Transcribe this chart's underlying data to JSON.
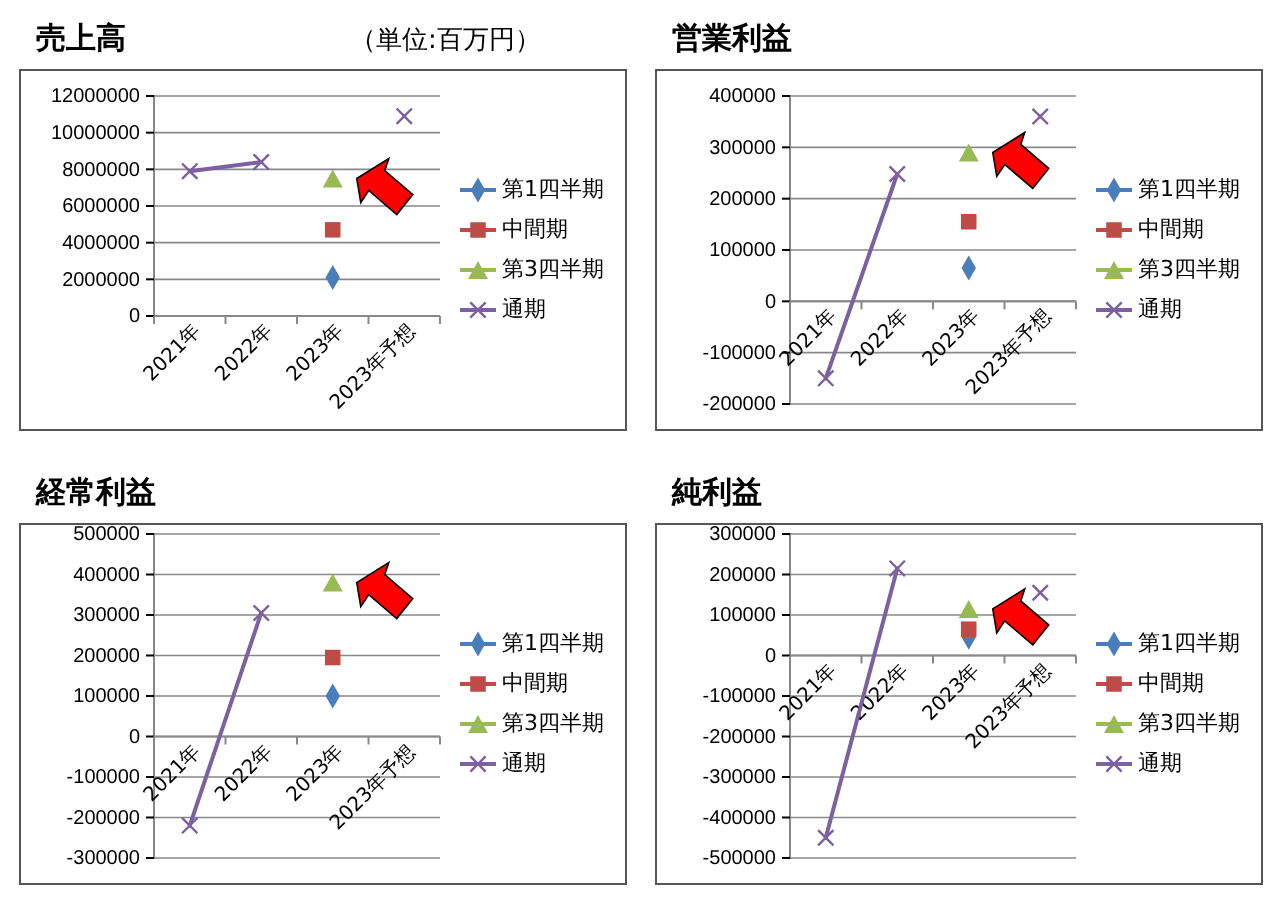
{
  "chart_data": [
    {
      "type": "line",
      "title": "売上高",
      "subtitle": "（単位:百万円）",
      "categories": [
        "2021年",
        "2022年",
        "2023年",
        "2023年予想"
      ],
      "series": [
        {
          "name": "第1四半期",
          "type": "scatter",
          "color": "#4a7ebb",
          "marker": "diamond",
          "values": [
            null,
            null,
            2100000,
            null
          ]
        },
        {
          "name": "中間期",
          "type": "scatter",
          "color": "#be4b48",
          "marker": "square",
          "values": [
            null,
            null,
            4700000,
            null
          ]
        },
        {
          "name": "第3四半期",
          "type": "scatter",
          "color": "#98b954",
          "marker": "triangle",
          "values": [
            null,
            null,
            7500000,
            null
          ]
        },
        {
          "name": "通期",
          "color": "#7d60a0",
          "marker": "cross",
          "values": [
            7900000,
            8400000,
            null,
            10900000
          ]
        }
      ],
      "ylim": [
        0,
        12000000
      ],
      "yticks": [
        0,
        2000000,
        4000000,
        6000000,
        8000000,
        10000000,
        12000000
      ],
      "grid": "y",
      "legend": "right"
    },
    {
      "type": "line",
      "title": "営業利益",
      "categories": [
        "2021年",
        "2022年",
        "2023年",
        "2023年予想"
      ],
      "series": [
        {
          "name": "第1四半期",
          "type": "scatter",
          "color": "#4a7ebb",
          "marker": "diamond",
          "values": [
            null,
            null,
            65000,
            null
          ]
        },
        {
          "name": "中間期",
          "type": "scatter",
          "color": "#be4b48",
          "marker": "square",
          "values": [
            null,
            null,
            155000,
            null
          ]
        },
        {
          "name": "第3四半期",
          "type": "scatter",
          "color": "#98b954",
          "marker": "triangle",
          "values": [
            null,
            null,
            290000,
            null
          ]
        },
        {
          "name": "通期",
          "color": "#7d60a0",
          "marker": "cross",
          "values": [
            -150000,
            248000,
            null,
            360000
          ]
        }
      ],
      "ylim": [
        -200000,
        400000
      ],
      "yticks": [
        -200000,
        -100000,
        0,
        100000,
        200000,
        300000,
        400000
      ],
      "grid": "y",
      "legend": "right"
    },
    {
      "type": "line",
      "title": "経常利益",
      "categories": [
        "2021年",
        "2022年",
        "2023年",
        "2023年予想"
      ],
      "series": [
        {
          "name": "第1四半期",
          "type": "scatter",
          "color": "#4a7ebb",
          "marker": "diamond",
          "values": [
            null,
            null,
            100000,
            null
          ]
        },
        {
          "name": "中間期",
          "type": "scatter",
          "color": "#be4b48",
          "marker": "square",
          "values": [
            null,
            null,
            195000,
            null
          ]
        },
        {
          "name": "第3四半期",
          "type": "scatter",
          "color": "#98b954",
          "marker": "triangle",
          "values": [
            null,
            null,
            380000,
            null
          ]
        },
        {
          "name": "通期",
          "color": "#7d60a0",
          "marker": "cross",
          "values": [
            -220000,
            305000,
            null,
            null
          ]
        }
      ],
      "ylim": [
        -300000,
        500000
      ],
      "yticks": [
        -300000,
        -200000,
        -100000,
        0,
        100000,
        200000,
        300000,
        400000,
        500000
      ],
      "grid": "y",
      "legend": "right"
    },
    {
      "type": "line",
      "title": "純利益",
      "categories": [
        "2021年",
        "2022年",
        "2023年",
        "2023年予想"
      ],
      "series": [
        {
          "name": "第1四半期",
          "type": "scatter",
          "color": "#4a7ebb",
          "marker": "diamond",
          "values": [
            null,
            null,
            45000,
            null
          ]
        },
        {
          "name": "中間期",
          "type": "scatter",
          "color": "#be4b48",
          "marker": "square",
          "values": [
            null,
            null,
            65000,
            null
          ]
        },
        {
          "name": "第3四半期",
          "type": "scatter",
          "color": "#98b954",
          "marker": "triangle",
          "values": [
            null,
            null,
            115000,
            null
          ]
        },
        {
          "name": "通期",
          "color": "#7d60a0",
          "marker": "cross",
          "values": [
            -450000,
            215000,
            null,
            155000
          ]
        }
      ],
      "ylim": [
        -500000,
        300000
      ],
      "yticks": [
        -500000,
        -400000,
        -300000,
        -200000,
        -100000,
        0,
        100000,
        200000,
        300000
      ],
      "grid": "y",
      "legend": "right"
    }
  ]
}
